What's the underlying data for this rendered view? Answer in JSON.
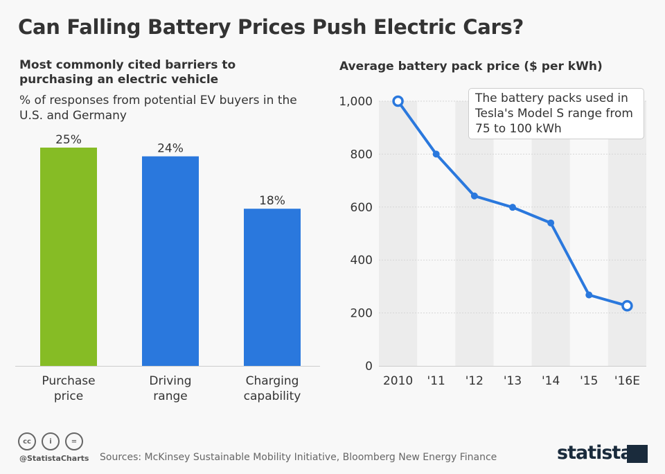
{
  "title": "Can Falling Battery Prices Push Electric Cars?",
  "left_subtitle": "Most commonly cited barriers to purchasing an electric vehicle",
  "left_description": "% of responses from potential EV buyers in the U.S. and Germany",
  "right_subtitle": "Average battery pack price ($ per kWh)",
  "annotation": "The battery packs used in Tesla's Model S range from 75 to 100 kWh",
  "footer": {
    "handle": "@StatistaCharts",
    "source": "Sources: McKinsey Sustainable Mobility Initiative, Bloomberg New Energy Finance",
    "logo": "statista",
    "license_icons": [
      "cc-icon",
      "attribution-icon",
      "no-derivatives-icon"
    ]
  },
  "colors": {
    "green": "#86bc25",
    "blue": "#2a78dd",
    "band": "#ececec"
  },
  "chart_data": [
    {
      "type": "bar",
      "categories": [
        "Purchase price",
        "Driving range",
        "Charging capability"
      ],
      "category_lines": [
        [
          "Purchase",
          "price"
        ],
        [
          "Driving",
          "range"
        ],
        [
          "Charging",
          "capability"
        ]
      ],
      "values": [
        25,
        24,
        18
      ],
      "data_labels": [
        "25%",
        "24%",
        "18%"
      ],
      "bar_colors": [
        "#86bc25",
        "#2a78dd",
        "#2a78dd"
      ],
      "ylim": [
        0,
        25
      ],
      "grid": false
    },
    {
      "type": "line",
      "categories": [
        "2010",
        "'11",
        "'12",
        "'13",
        "'14",
        "'15",
        "'16E"
      ],
      "values": [
        1000,
        800,
        642,
        599,
        540,
        268,
        227
      ],
      "hollow_markers": [
        "2010",
        "'16E"
      ],
      "ylim": [
        0,
        1000
      ],
      "yticks": [
        0,
        200,
        400,
        600,
        800,
        1000
      ],
      "ytick_labels": [
        "0",
        "200",
        "400",
        "600",
        "800",
        "1,000"
      ],
      "grid": true,
      "color": "#2a78dd"
    }
  ]
}
